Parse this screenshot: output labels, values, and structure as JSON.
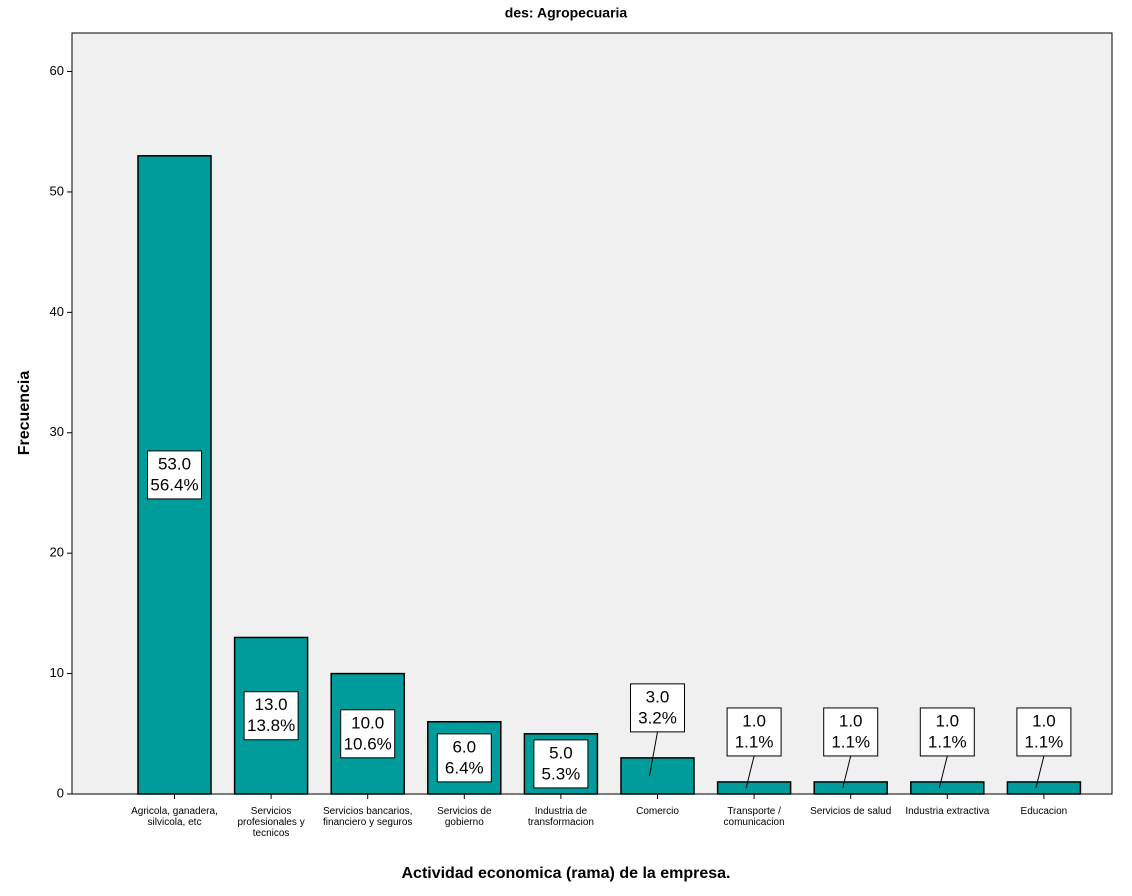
{
  "chart_data": {
    "type": "bar",
    "title": "des: Agropecuaria",
    "x_label": "Actividad economica (rama) de la empresa.",
    "y_label": "Frecuencia",
    "categories": [
      "Agricola, ganadera, silvicola, etc",
      "Servicios profesionales y tecnicos",
      "Servicios bancarios, financiero y seguros",
      "Servicios de gobierno",
      "Industria de transformacion",
      "Comercio",
      "Transporte / comunicacion",
      "Servicios de salud",
      "Industria extractiva",
      "Educacion"
    ],
    "values": [
      53,
      13,
      10,
      6,
      5,
      3,
      1,
      1,
      1,
      1
    ],
    "value_labels": [
      "53.0",
      "13.0",
      "10.0",
      "6.0",
      "5.0",
      "3.0",
      "1.0",
      "1.0",
      "1.0",
      "1.0"
    ],
    "percent_labels": [
      "56.4%",
      "13.8%",
      "10.6%",
      "6.4%",
      "5.3%",
      "3.2%",
      "1.1%",
      "1.1%",
      "1.1%",
      "1.1%"
    ],
    "color": "#009c9c",
    "ylim": [
      0,
      63.2
    ],
    "yticks": [
      0,
      10,
      20,
      30,
      40,
      50,
      60
    ]
  }
}
